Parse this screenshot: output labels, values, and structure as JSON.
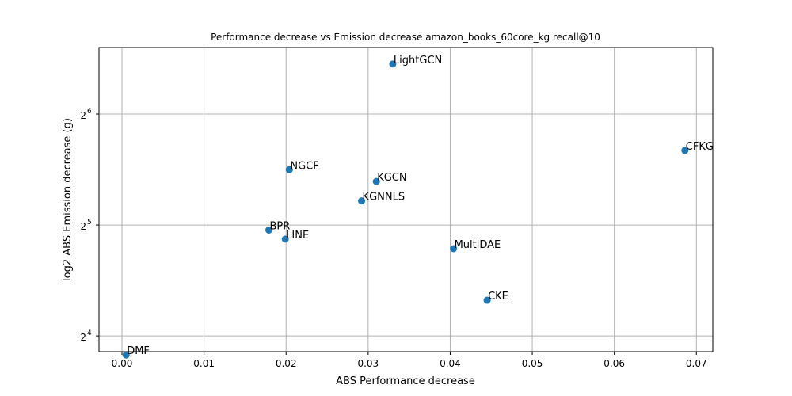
{
  "chart_data": {
    "type": "scatter",
    "title": "Performance decrease vs Emission decrease amazon_books_60core_kg recall@10",
    "xlabel": "ABS Performance decrease",
    "ylabel": "log2 ABS Emission decrease (g)",
    "xlim": [
      -0.0028,
      0.072
    ],
    "ylim": [
      14.5,
      97
    ],
    "y_scale": "log2",
    "x_ticks": [
      0.0,
      0.01,
      0.02,
      0.03,
      0.04,
      0.05,
      0.06,
      0.07
    ],
    "x_tick_labels": [
      "0.00",
      "0.01",
      "0.02",
      "0.03",
      "0.04",
      "0.05",
      "0.06",
      "0.07"
    ],
    "y_ticks": [
      16,
      32,
      64
    ],
    "y_tick_labels": [
      {
        "base": "2",
        "exp": "4"
      },
      {
        "base": "2",
        "exp": "5"
      },
      {
        "base": "2",
        "exp": "6"
      }
    ],
    "grid": true,
    "marker_color": "#1f77b4",
    "points": [
      {
        "label": "LightGCN",
        "x": 0.033,
        "y": 87.5
      },
      {
        "label": "CFKG",
        "x": 0.0686,
        "y": 51.0
      },
      {
        "label": "NGCF",
        "x": 0.0204,
        "y": 45.2
      },
      {
        "label": "KGCN",
        "x": 0.031,
        "y": 42.0
      },
      {
        "label": "KGNNLS",
        "x": 0.0292,
        "y": 37.2
      },
      {
        "label": "BPR",
        "x": 0.0179,
        "y": 31.0
      },
      {
        "label": "LINE",
        "x": 0.0199,
        "y": 29.3
      },
      {
        "label": "MultiDAE",
        "x": 0.0404,
        "y": 27.6
      },
      {
        "label": "CKE",
        "x": 0.0445,
        "y": 20.0
      },
      {
        "label": "DMF",
        "x": 0.0005,
        "y": 14.2
      }
    ]
  }
}
